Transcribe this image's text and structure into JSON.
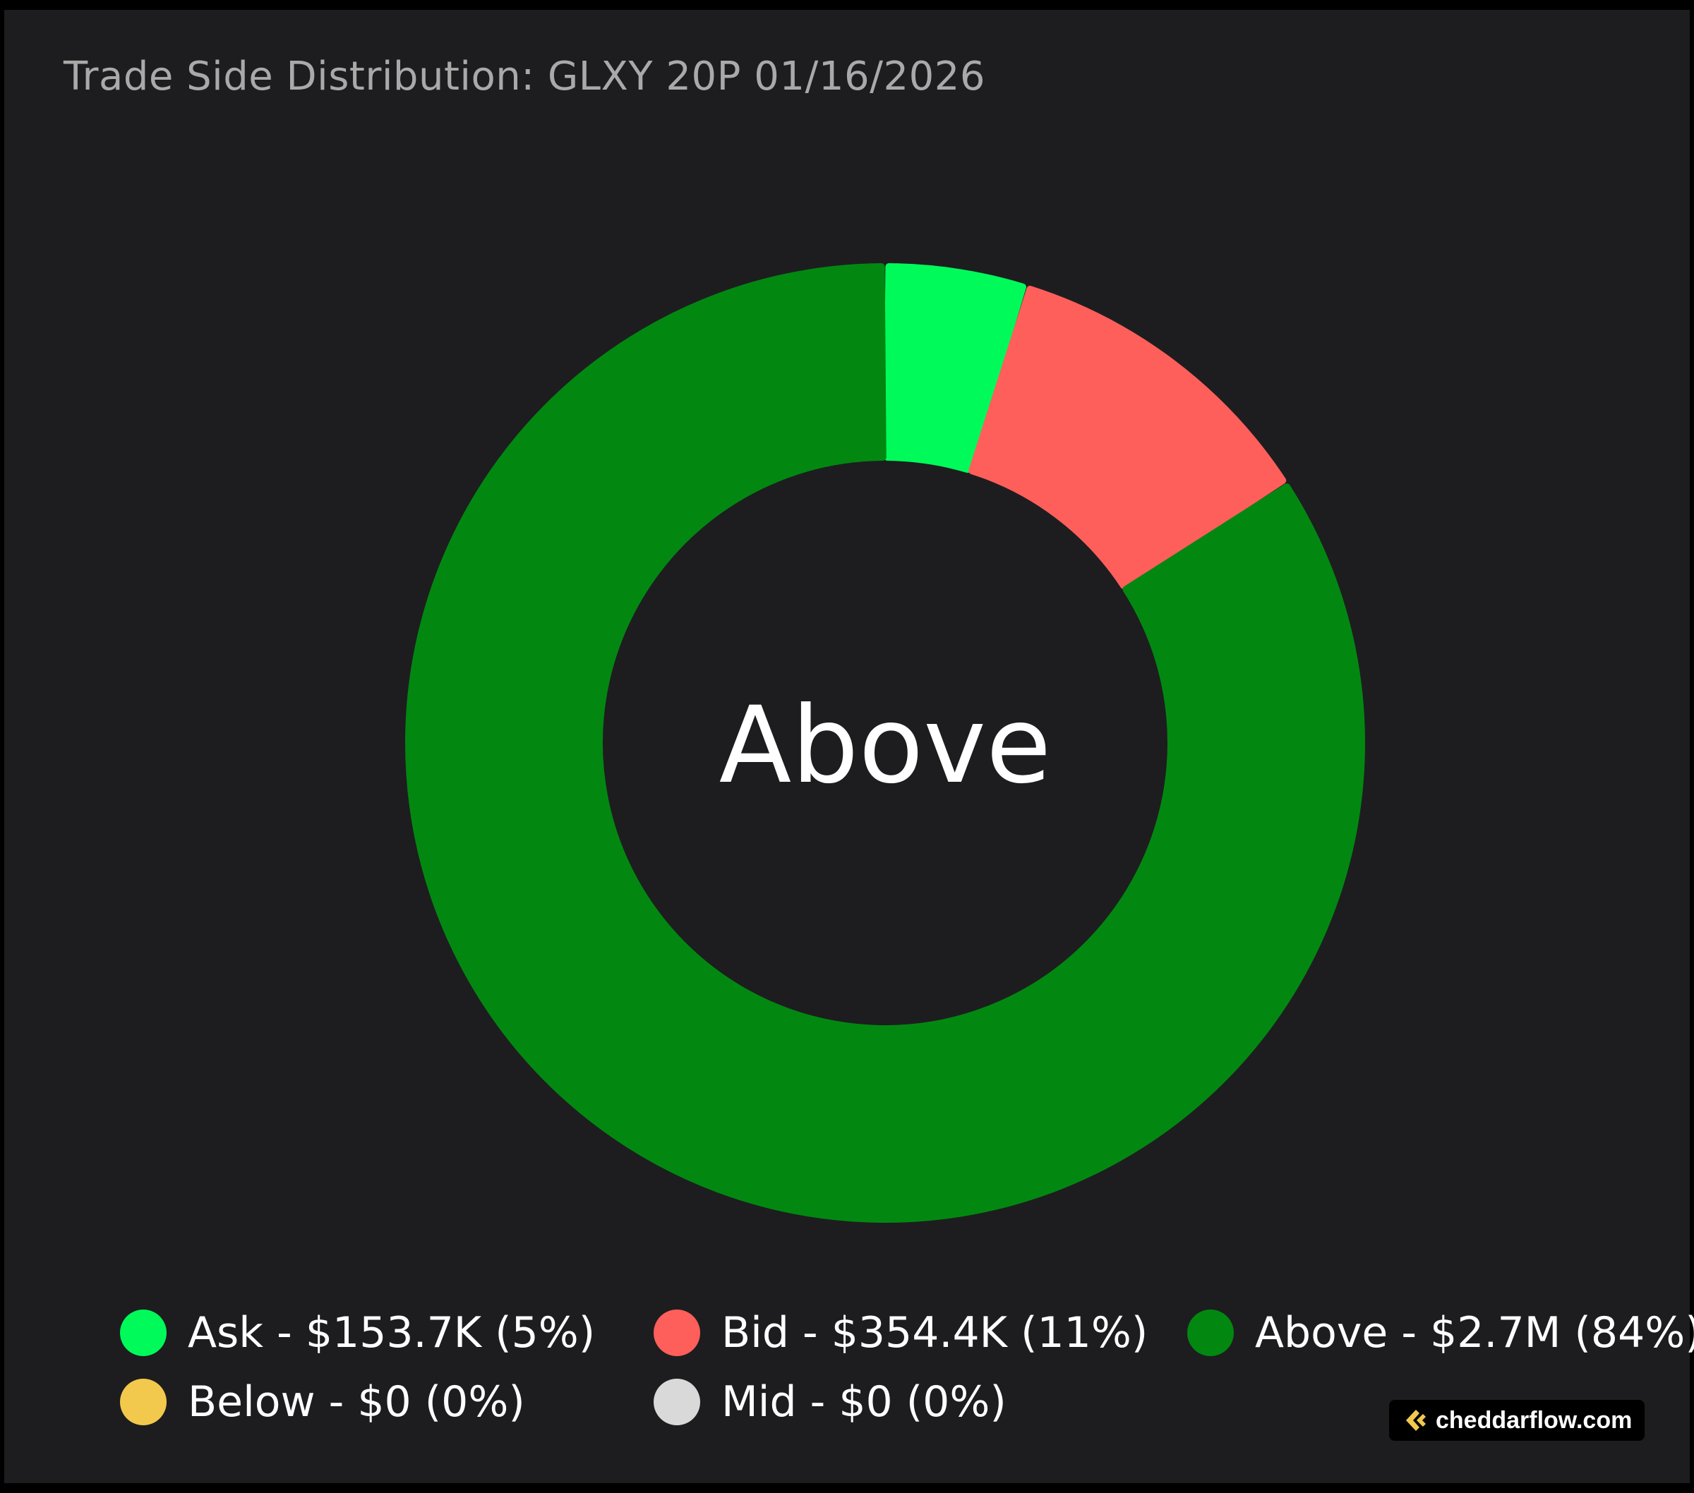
{
  "chart_data": {
    "type": "pie",
    "variant": "donut",
    "title": "Trade Side Distribution: GLXY 20P 01/16/2026",
    "center_label": "Above",
    "legend_placement": "bottom",
    "slices": [
      {
        "name": "Ask",
        "value": 153700,
        "percent": 5,
        "color": "#00fa5a",
        "label": "Ask - $153.7K (5%)"
      },
      {
        "name": "Bid",
        "value": 354400,
        "percent": 11,
        "color": "#ff5f5b",
        "label": "Bid - $354.4K (11%)"
      },
      {
        "name": "Above",
        "value": 2700000,
        "percent": 84,
        "color": "#028811",
        "label": "Above - $2.7M (84%)"
      },
      {
        "name": "Below",
        "value": 0,
        "percent": 0,
        "color": "#f2c94c",
        "label": "Below - $0 (0%)"
      },
      {
        "name": "Mid",
        "value": 0,
        "percent": 0,
        "color": "#d9d9d9",
        "label": "Mid - $0 (0%)"
      }
    ]
  },
  "watermark": {
    "text": "cheddarflow.com",
    "icon": "cheddarflow-logo-icon",
    "icon_color": "#f2c94c"
  }
}
